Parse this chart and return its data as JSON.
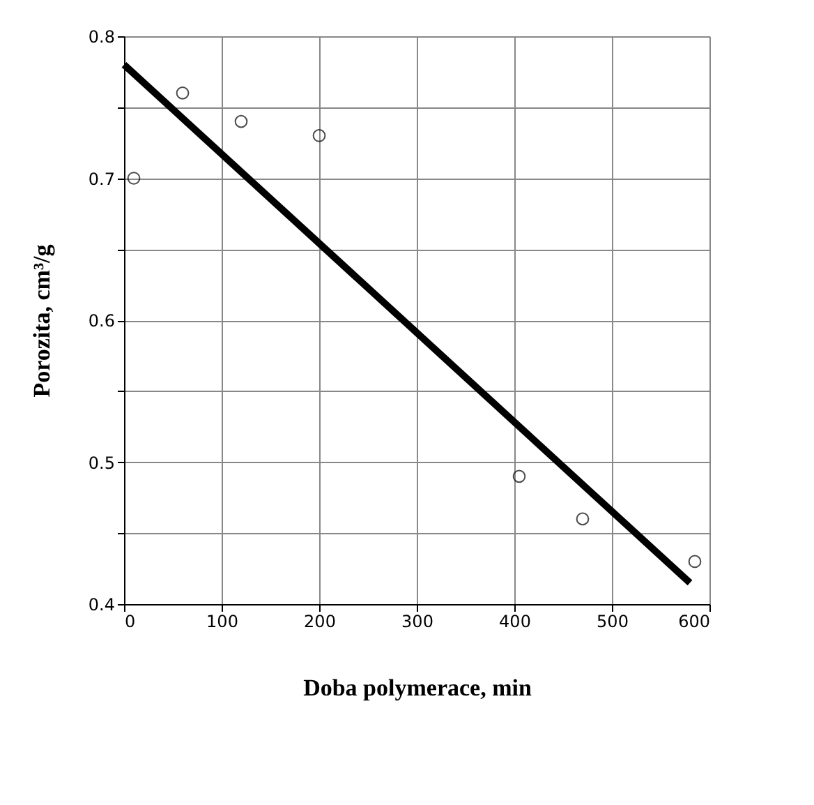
{
  "chart_data": {
    "type": "scatter",
    "xlabel": "Doba polymerace, min",
    "ylabel": "Porozita, cm³/g",
    "xlim": [
      0,
      600
    ],
    "xticks": [
      0,
      100,
      200,
      300,
      400,
      500,
      600
    ],
    "ylim": [
      0.4,
      0.8
    ],
    "yticks": [
      0.4,
      {
        "value": 0.45,
        "label": null
      },
      0.5,
      {
        "value": 0.55,
        "label": null
      },
      0.6,
      {
        "value": 0.65,
        "label": null
      },
      0.7,
      {
        "value": 0.75,
        "label": null
      },
      0.8
    ],
    "grid": true,
    "series": [
      {
        "marker": "circle",
        "color": "#000000",
        "x": [
          10,
          60,
          120,
          200,
          405,
          470,
          585
        ],
        "values": [
          0.7,
          0.76,
          0.74,
          0.73,
          0.49,
          0.46,
          0.43
        ]
      },
      {
        "type": "line",
        "line_style": "solid",
        "color": "#000000",
        "x": [
          0,
          580
        ],
        "values": [
          0.78,
          0.415
        ]
      }
    ]
  }
}
